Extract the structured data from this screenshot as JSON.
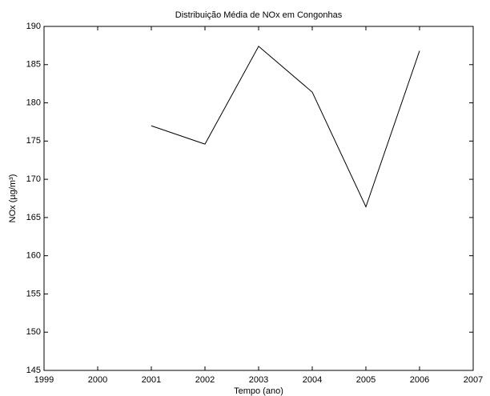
{
  "chart_data": {
    "type": "line",
    "title": "Distribuição Média de NOx em Congonhas",
    "x_label": "Tempo (ano)",
    "y_label": "NOx (µg/m³)",
    "x": [
      2001,
      2002,
      2003,
      2004,
      2005,
      2006
    ],
    "series": [
      {
        "color": "#000000",
        "values": [
          177.0,
          174.6,
          187.4,
          181.4,
          166.4,
          186.8
        ]
      }
    ],
    "xlim": [
      1999,
      2007
    ],
    "xticks": [
      1999,
      2000,
      2001,
      2002,
      2003,
      2004,
      2005,
      2006,
      2007
    ],
    "ylim": [
      145,
      190
    ],
    "yticks": [
      145,
      150,
      155,
      160,
      165,
      170,
      175,
      180,
      185,
      190
    ],
    "grid": false
  }
}
